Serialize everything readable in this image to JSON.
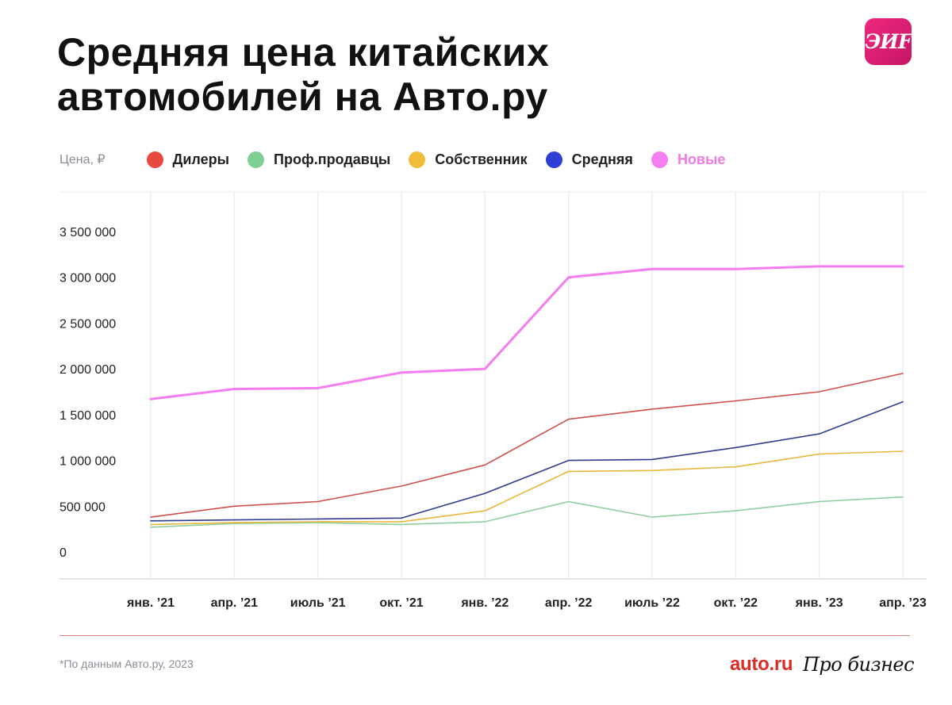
{
  "title": "Средняя цена китайских автомобилей на Авто.ру",
  "logo_text": "ЭИF",
  "footnote": "*По данным Авто.ру, 2023",
  "brand_auto": "auto.ru",
  "brand_pro": "Про бизнес",
  "chart_data": {
    "type": "line",
    "ylabel": "Цена, ₽",
    "ylim": [
      0,
      3500000
    ],
    "yticks": [
      0,
      500000,
      1000000,
      1500000,
      2000000,
      2500000,
      3000000,
      3500000
    ],
    "ytick_labels": [
      "0",
      "500 000",
      "1 000 000",
      "1 500 000",
      "2 000 000",
      "2 500 000",
      "3 000 000",
      "3 500 000"
    ],
    "categories": [
      "янв. ’21",
      "апр. ’21",
      "июль ’21",
      "окт. ’21",
      "янв. ’22",
      "апр. ’22",
      "июль ’22",
      "окт. ’22",
      "янв. ’23",
      "апр. ’23"
    ],
    "grid": "vertical",
    "legend_position": "top",
    "series": [
      {
        "name": "Дилеры",
        "color": "#e8483f",
        "line_color": "#d0504a",
        "legend_text_color": "#222222",
        "values": [
          380000,
          500000,
          550000,
          720000,
          950000,
          1450000,
          1560000,
          1650000,
          1750000,
          1950000
        ]
      },
      {
        "name": "Проф.продавцы",
        "color": "#7fcf93",
        "line_color": "#8fcf9d",
        "legend_text_color": "#222222",
        "values": [
          270000,
          310000,
          320000,
          300000,
          330000,
          550000,
          380000,
          450000,
          550000,
          600000
        ]
      },
      {
        "name": "Собственник",
        "color": "#f0bc3a",
        "line_color": "#e9b73d",
        "legend_text_color": "#222222",
        "values": [
          300000,
          320000,
          330000,
          330000,
          450000,
          880000,
          890000,
          930000,
          1070000,
          1100000
        ]
      },
      {
        "name": "Средняя",
        "color": "#2e3ed6",
        "line_color": "#2f3d8f",
        "legend_text_color": "#222222",
        "values": [
          340000,
          350000,
          360000,
          370000,
          640000,
          1000000,
          1010000,
          1140000,
          1290000,
          1640000
        ]
      },
      {
        "name": "Новые",
        "color": "#f57ff0",
        "line_color": "#f47ef0",
        "legend_text_color": "#f07ae8",
        "values": [
          1670000,
          1780000,
          1790000,
          1960000,
          2000000,
          3000000,
          3090000,
          3090000,
          3120000,
          3120000
        ]
      }
    ]
  }
}
